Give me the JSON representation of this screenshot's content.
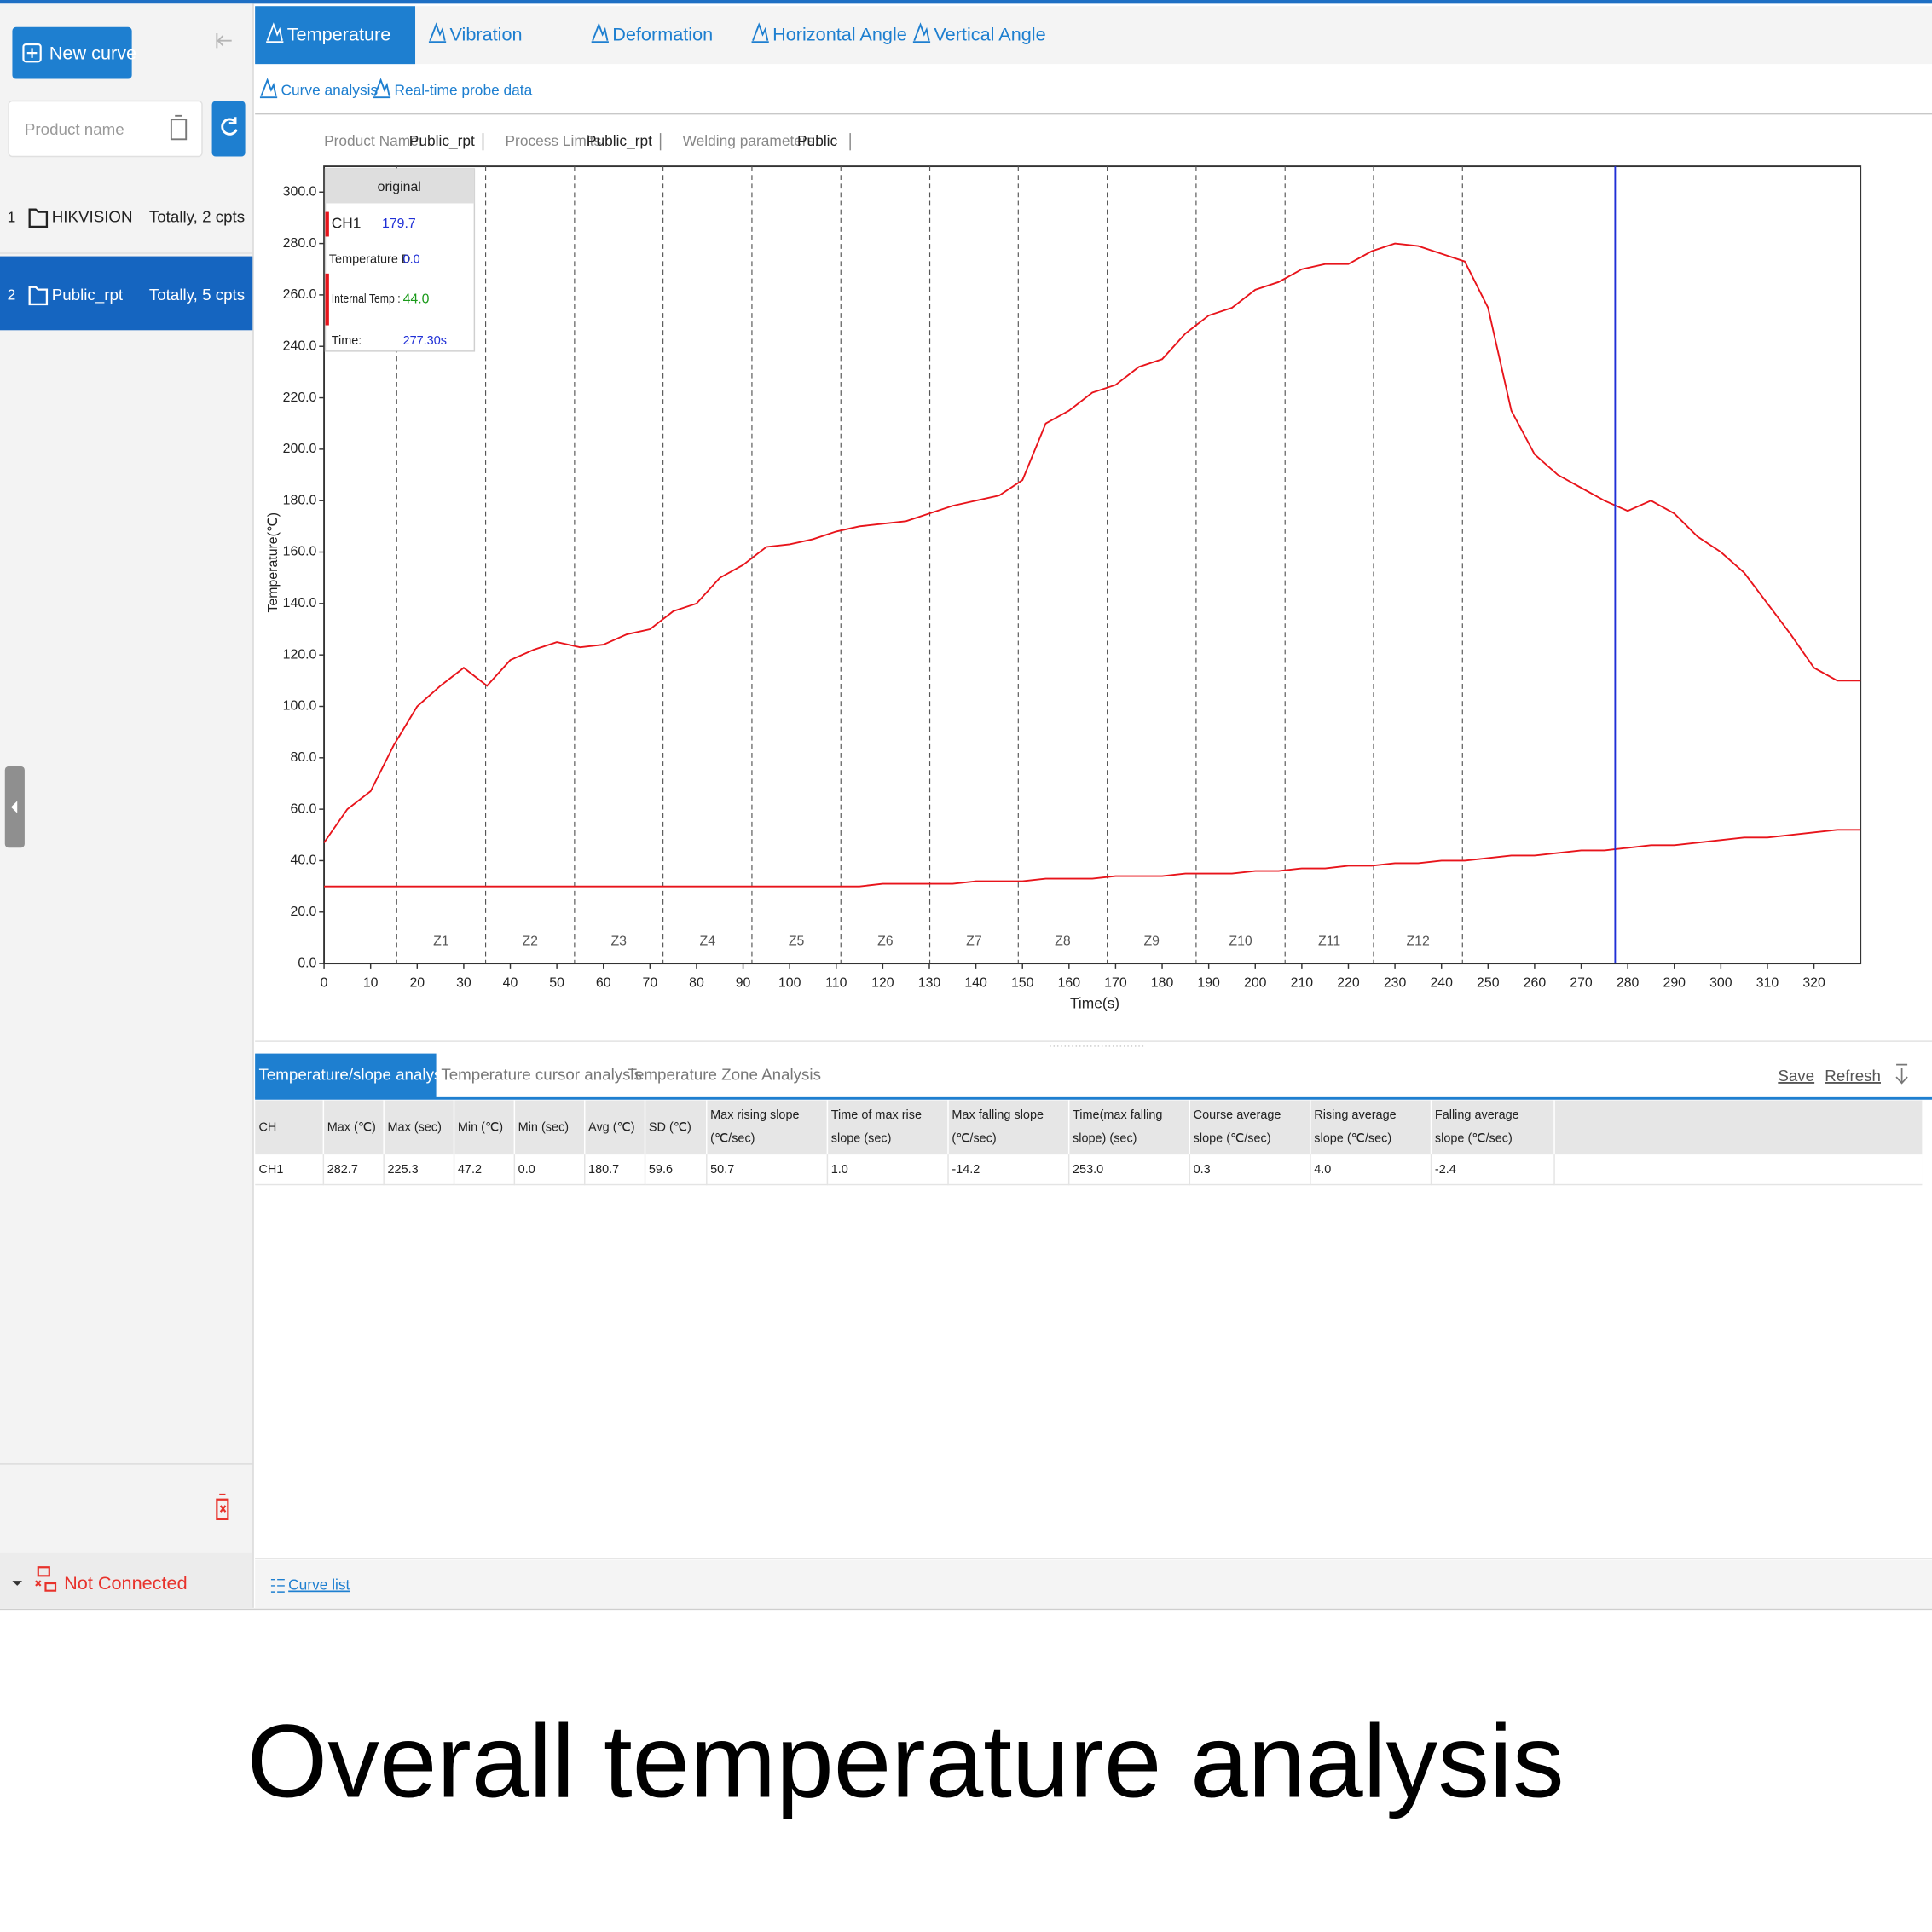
{
  "sidebar": {
    "new_curve": "New curve",
    "search_placeholder": "Product name",
    "items": [
      {
        "index": "1",
        "name": "HIKVISION",
        "count": "Totally, 2 cpts"
      },
      {
        "index": "2",
        "name": "Public_rpt",
        "count": "Totally, 5 cpts"
      }
    ],
    "status": "Not Connected"
  },
  "tabs": [
    "Temperature",
    "Vibration",
    "Deformation",
    "Horizontal Angle",
    "Vertical Angle"
  ],
  "subtabs": [
    "Curve analysis",
    "Real-time probe data"
  ],
  "info": [
    {
      "label": "Product Name:",
      "value": "Public_rpt"
    },
    {
      "label": "Process Limits:",
      "value": "Public_rpt"
    },
    {
      "label": "Welding parameters:",
      "value": "Public"
    }
  ],
  "chart_data": {
    "type": "line",
    "x_label": "Time(s)",
    "y_label": "Temperature(℃)",
    "xlim": [
      0,
      330
    ],
    "xticks": [
      0,
      10,
      20,
      30,
      40,
      50,
      60,
      70,
      80,
      90,
      100,
      110,
      120,
      130,
      140,
      150,
      160,
      170,
      180,
      190,
      200,
      210,
      220,
      230,
      240,
      250,
      260,
      270,
      280,
      290,
      300,
      310,
      320
    ],
    "ylim": [
      0,
      310
    ],
    "yticks": [
      {
        "value": 0,
        "label": "0.0"
      },
      {
        "value": 20,
        "label": "20.0"
      },
      {
        "value": 40,
        "label": "40.0"
      },
      {
        "value": 60,
        "label": "60.0"
      },
      {
        "value": 80,
        "label": "80.0"
      },
      {
        "value": 100,
        "label": "100.0"
      },
      {
        "value": 120,
        "label": "120.0"
      },
      {
        "value": 140,
        "label": "140.0"
      },
      {
        "value": 160,
        "label": "160.0"
      },
      {
        "value": 180,
        "label": "180.0"
      },
      {
        "value": 200,
        "label": "200.0"
      },
      {
        "value": 220,
        "label": "220.0"
      },
      {
        "value": 240,
        "label": "240.0"
      },
      {
        "value": 260,
        "label": "260.0"
      },
      {
        "value": 280,
        "label": "280.0"
      },
      {
        "value": 300,
        "label": "300.0"
      }
    ],
    "x": [
      0,
      5,
      10,
      15,
      20,
      25,
      30,
      35,
      40,
      45,
      50,
      55,
      60,
      65,
      70,
      75,
      80,
      85,
      90,
      95,
      100,
      105,
      110,
      115,
      120,
      125,
      130,
      135,
      140,
      145,
      150,
      155,
      160,
      165,
      170,
      175,
      180,
      185,
      190,
      195,
      200,
      205,
      210,
      215,
      220,
      225,
      230,
      235,
      240,
      245,
      250,
      255,
      260,
      265,
      270,
      275,
      280,
      285,
      290,
      295,
      300,
      305,
      310,
      315,
      320,
      325,
      330
    ],
    "series": [
      {
        "name": "CH1",
        "color": "#e8141b",
        "cursor_value": "179.7",
        "values": [
          47,
          60,
          67,
          85,
          100,
          108,
          115,
          108,
          118,
          122,
          125,
          123,
          124,
          128,
          130,
          137,
          140,
          150,
          155,
          162,
          163,
          165,
          168,
          170,
          171,
          172,
          175,
          178,
          180,
          182,
          188,
          210,
          215,
          222,
          225,
          232,
          235,
          245,
          252,
          255,
          262,
          265,
          270,
          272,
          272,
          277,
          280,
          279,
          276,
          273,
          255,
          215,
          198,
          190,
          185,
          180,
          176,
          180,
          175,
          166,
          160,
          152,
          140,
          128,
          115,
          110,
          110
        ]
      },
      {
        "name": "Internal Temp :",
        "color": "#e8141b",
        "cursor_value": "44.0",
        "values": [
          30,
          30,
          30,
          30,
          30,
          30,
          30,
          30,
          30,
          30,
          30,
          30,
          30,
          30,
          30,
          30,
          30,
          30,
          30,
          30,
          30,
          30,
          30,
          30,
          31,
          31,
          31,
          31,
          32,
          32,
          32,
          33,
          33,
          33,
          34,
          34,
          34,
          35,
          35,
          35,
          36,
          36,
          37,
          37,
          38,
          38,
          39,
          39,
          40,
          40,
          41,
          42,
          42,
          43,
          44,
          44,
          45,
          46,
          46,
          47,
          48,
          49,
          49,
          50,
          51,
          52,
          52
        ]
      }
    ],
    "extra_reading": {
      "label": "Temperature D",
      "value": "0.0"
    },
    "cursor_box": {
      "title": "original"
    },
    "cursor": {
      "name": "Time:",
      "x": 277.3,
      "label": "277.30s",
      "color": "#1f2fd6"
    },
    "zones": {
      "labels": [
        "Z1",
        "Z2",
        "Z3",
        "Z4",
        "Z5",
        "Z6",
        "Z7",
        "Z8",
        "Z9",
        "Z10",
        "Z11",
        "Z12"
      ],
      "bounds": [
        15.6,
        34.7,
        53.8,
        72.8,
        91.9,
        111.0,
        130.1,
        149.1,
        168.2,
        187.3,
        206.4,
        225.4,
        244.5
      ]
    },
    "grid": false
  },
  "analysis": {
    "tabs": [
      "Temperature/slope analysis",
      "Temperature cursor analysis",
      "Temperature Zone Analysis"
    ],
    "actions": [
      "Save",
      "Refresh"
    ],
    "headers": [
      "CH",
      "Max (℃)",
      "Max (sec)",
      "Min (℃)",
      "Min (sec)",
      "Avg (℃)",
      "SD (℃)",
      "Max rising slope (℃/sec)",
      "Time of max rise slope (sec)",
      "Max falling slope (℃/sec)",
      "Time(max falling slope) (sec)",
      "Course average slope (℃/sec)",
      "Rising average slope (℃/sec)",
      "Falling average slope (℃/sec)"
    ],
    "rows": [
      [
        "CH1",
        "282.7",
        "225.3",
        "47.2",
        "0.0",
        "180.7",
        "59.6",
        "50.7",
        "1.0",
        "-14.2",
        "253.0",
        "0.3",
        "4.0",
        "-2.4"
      ]
    ]
  },
  "footer": {
    "curve_list": "Curve list"
  },
  "caption": "Overall temperature analysis"
}
